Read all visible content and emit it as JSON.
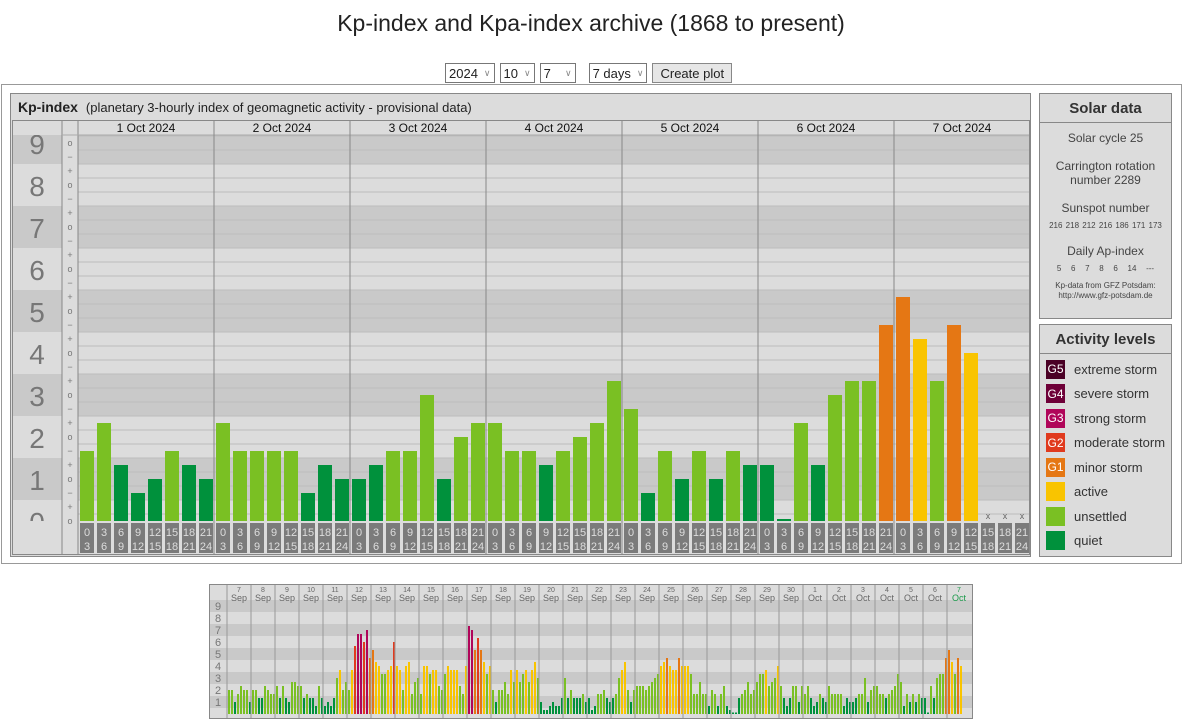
{
  "title": "Kp-index and Kpa-index archive (1868 to present)",
  "controls": {
    "year": "2024",
    "month": "10",
    "day": "7",
    "range": "7 days",
    "create_label": "Create plot"
  },
  "kp_panel": {
    "title": "Kp-index",
    "subtitle": "(planetary 3-hourly index of geomagnetic activity - provisional data)",
    "y_labels": [
      "0",
      "1",
      "2",
      "3",
      "4",
      "5",
      "6",
      "7",
      "8",
      "9"
    ],
    "missing_marker": "x",
    "slots": [
      [
        "0",
        "3"
      ],
      [
        "3",
        "6"
      ],
      [
        "6",
        "9"
      ],
      [
        "9",
        "12"
      ],
      [
        "12",
        "15"
      ],
      [
        "15",
        "18"
      ],
      [
        "18",
        "21"
      ],
      [
        "21",
        "24"
      ]
    ],
    "days": [
      {
        "label": "1 Oct 2024",
        "kp": [
          "2-",
          "2+",
          "1+",
          "1-",
          "1o",
          "2-",
          "1+",
          "1o"
        ]
      },
      {
        "label": "2 Oct 2024",
        "kp": [
          "2+",
          "2-",
          "2-",
          "2-",
          "2-",
          "1-",
          "1+",
          "1o"
        ]
      },
      {
        "label": "3 Oct 2024",
        "kp": [
          "1o",
          "1+",
          "2-",
          "2-",
          "3o",
          "1o",
          "2o",
          "2+"
        ]
      },
      {
        "label": "4 Oct 2024",
        "kp": [
          "2+",
          "2-",
          "2-",
          "1+",
          "2-",
          "2o",
          "2+",
          "3+"
        ]
      },
      {
        "label": "5 Oct 2024",
        "kp": [
          "3-",
          "1-",
          "2-",
          "1o",
          "2-",
          "1o",
          "2-",
          "1+"
        ]
      },
      {
        "label": "6 Oct 2024",
        "kp": [
          "1+",
          "0o",
          "2+",
          "1+",
          "3o",
          "3+",
          "3+",
          "5-"
        ]
      },
      {
        "label": "7 Oct 2024",
        "kp": [
          "5+",
          "4+",
          "3+",
          "5-",
          "4o",
          null,
          null,
          null
        ]
      }
    ]
  },
  "solar": {
    "title": "Solar data",
    "cycle": "Solar cycle 25",
    "carrington_1": "Carrington rotation",
    "carrington_2": "number 2289",
    "sunspot_title": "Sunspot number",
    "sunspots": "216 218 212 216 186 171 173",
    "ap_title": "Daily Ap-index",
    "ap": "5   6   7   8   6   14   ---",
    "source_1": "Kp-data from GFZ Potsdam:",
    "source_2": "http://www.gfz-potsdam.de"
  },
  "activity": {
    "title": "Activity levels",
    "levels": [
      {
        "code": "G5",
        "label": "extreme storm",
        "color": "#4a0025"
      },
      {
        "code": "G4",
        "label": "severe storm",
        "color": "#6e0038"
      },
      {
        "code": "G3",
        "label": "strong storm",
        "color": "#b0065a"
      },
      {
        "code": "G2",
        "label": "moderate storm",
        "color": "#e03a1e"
      },
      {
        "code": "G1",
        "label": "minor storm",
        "color": "#e57714"
      },
      {
        "code": "",
        "label": "active",
        "color": "#f9c400"
      },
      {
        "code": "",
        "label": "unsettled",
        "color": "#7ac023"
      },
      {
        "code": "",
        "label": "quiet",
        "color": "#00913c"
      }
    ]
  },
  "mini": {
    "y_labels": [
      "1",
      "2",
      "3",
      "4",
      "5",
      "6",
      "7",
      "8",
      "9"
    ],
    "days": [
      {
        "n": "7",
        "m": "Sep",
        "kp_thirds": [
          6,
          6,
          3,
          5,
          7,
          6,
          6,
          3
        ]
      },
      {
        "n": "8",
        "m": "Sep",
        "kp_thirds": [
          6,
          6,
          4,
          4,
          7,
          6,
          5,
          5
        ]
      },
      {
        "n": "9",
        "m": "Sep",
        "kp_thirds": [
          7,
          4,
          7,
          4,
          3,
          8,
          8,
          7
        ]
      },
      {
        "n": "10",
        "m": "Sep",
        "kp_thirds": [
          7,
          4,
          5,
          4,
          4,
          2,
          7,
          4
        ]
      },
      {
        "n": "11",
        "m": "Sep",
        "kp_thirds": [
          2,
          3,
          2,
          4,
          9,
          11,
          6,
          8
        ]
      },
      {
        "n": "12",
        "m": "Sep",
        "kp_thirds": [
          6,
          11,
          17,
          20,
          20,
          18,
          21,
          14
        ]
      },
      {
        "n": "13",
        "m": "Sep",
        "kp_thirds": [
          16,
          13,
          12,
          10,
          10,
          11,
          12,
          18
        ]
      },
      {
        "n": "14",
        "m": "Sep",
        "kp_thirds": [
          12,
          11,
          6,
          12,
          13,
          5,
          8,
          9
        ]
      },
      {
        "n": "15",
        "m": "Sep",
        "kp_thirds": [
          5,
          12,
          12,
          10,
          11,
          11,
          7,
          6
        ]
      },
      {
        "n": "16",
        "m": "Sep",
        "kp_thirds": [
          10,
          12,
          11,
          11,
          11,
          7,
          5,
          12
        ]
      },
      {
        "n": "17",
        "m": "Sep",
        "kp_thirds": [
          22,
          21,
          16,
          19,
          16,
          13,
          10,
          12
        ]
      },
      {
        "n": "18",
        "m": "Sep",
        "kp_thirds": [
          6,
          3,
          6,
          6,
          8,
          5,
          11,
          8
        ]
      },
      {
        "n": "19",
        "m": "Sep",
        "kp_thirds": [
          11,
          8,
          10,
          11,
          8,
          11,
          13,
          9
        ]
      },
      {
        "n": "20",
        "m": "Sep",
        "kp_thirds": [
          3,
          1,
          1,
          2,
          3,
          2,
          2,
          4
        ]
      },
      {
        "n": "21",
        "m": "Sep",
        "kp_thirds": [
          9,
          4,
          6,
          4,
          4,
          4,
          5,
          3
        ]
      },
      {
        "n": "22",
        "m": "Sep",
        "kp_thirds": [
          4,
          1,
          2,
          5,
          5,
          6,
          4,
          3
        ]
      },
      {
        "n": "23",
        "m": "Sep",
        "kp_thirds": [
          4,
          5,
          9,
          11,
          13,
          6,
          3,
          6
        ]
      },
      {
        "n": "24",
        "m": "Sep",
        "kp_thirds": [
          7,
          7,
          7,
          6,
          7,
          8,
          9,
          10
        ]
      },
      {
        "n": "25",
        "m": "Sep",
        "kp_thirds": [
          12,
          13,
          14,
          12,
          11,
          11,
          14,
          12
        ]
      },
      {
        "n": "26",
        "m": "Sep",
        "kp_thirds": [
          12,
          12,
          10,
          5,
          5,
          8,
          5,
          5
        ]
      },
      {
        "n": "27",
        "m": "Sep",
        "kp_thirds": [
          2,
          6,
          5,
          2,
          5,
          7,
          2,
          1
        ]
      },
      {
        "n": "28",
        "m": "Sep",
        "kp_thirds": [
          0,
          0,
          4,
          5,
          6,
          8,
          5,
          6
        ]
      },
      {
        "n": "29",
        "m": "Sep",
        "kp_thirds": [
          8,
          10,
          10,
          11,
          7,
          8,
          9,
          12
        ]
      },
      {
        "n": "30",
        "m": "Sep",
        "kp_thirds": [
          7,
          4,
          2,
          4,
          7,
          7,
          3,
          7
        ]
      },
      {
        "n": "1",
        "m": "Oct",
        "kp_thirds": [
          5,
          7,
          4,
          2,
          3,
          5,
          4,
          3
        ]
      },
      {
        "n": "2",
        "m": "Oct",
        "kp_thirds": [
          7,
          5,
          5,
          5,
          5,
          2,
          4,
          3
        ]
      },
      {
        "n": "3",
        "m": "Oct",
        "kp_thirds": [
          3,
          4,
          5,
          5,
          9,
          3,
          6,
          7
        ]
      },
      {
        "n": "4",
        "m": "Oct",
        "kp_thirds": [
          7,
          5,
          5,
          4,
          5,
          6,
          7,
          10
        ]
      },
      {
        "n": "5",
        "m": "Oct",
        "kp_thirds": [
          8,
          2,
          5,
          3,
          5,
          3,
          5,
          4
        ]
      },
      {
        "n": "6",
        "m": "Oct",
        "kp_thirds": [
          4,
          0,
          7,
          4,
          9,
          10,
          10,
          14
        ]
      },
      {
        "n": "7",
        "m": "Oct",
        "kp_thirds": [
          16,
          13,
          10,
          14,
          12
        ],
        "current": true
      }
    ]
  },
  "chart_data": {
    "type": "bar",
    "title": "Kp-index",
    "ylabel": "Kp",
    "ylim": [
      0,
      9
    ],
    "categories": [
      "1 Oct 2024",
      "2 Oct 2024",
      "3 Oct 2024",
      "4 Oct 2024",
      "5 Oct 2024",
      "6 Oct 2024",
      "7 Oct 2024"
    ],
    "note": "8 three-hourly values per day, see kp_panel.days"
  }
}
